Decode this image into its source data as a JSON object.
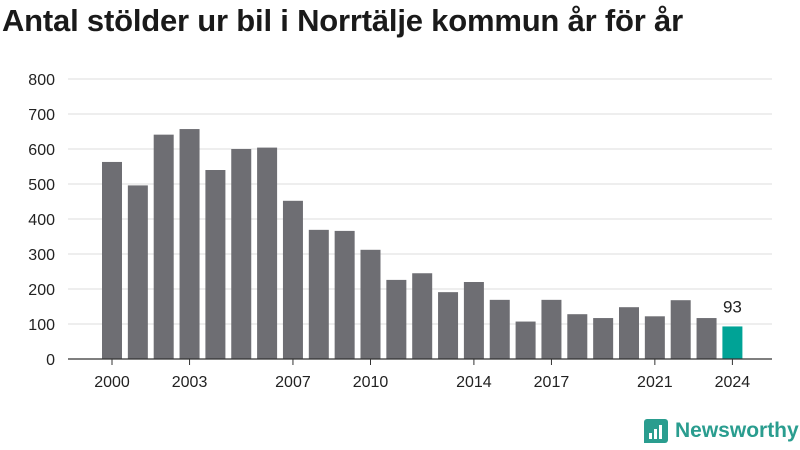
{
  "chart_data": {
    "type": "bar",
    "title": "Antal stölder ur bil i Norrtälje kommun år för år",
    "categories": [
      "2000",
      "2001",
      "2002",
      "2003",
      "2004",
      "2005",
      "2006",
      "2007",
      "2008",
      "2009",
      "2010",
      "2011",
      "2012",
      "2013",
      "2014",
      "2015",
      "2016",
      "2017",
      "2018",
      "2019",
      "2020",
      "2021",
      "2022",
      "2023",
      "2024"
    ],
    "values": [
      563,
      496,
      641,
      657,
      540,
      600,
      604,
      452,
      369,
      366,
      312,
      226,
      245,
      191,
      220,
      169,
      107,
      169,
      128,
      117,
      148,
      122,
      168,
      117,
      93
    ],
    "x_tick_labels": [
      "2000",
      "2003",
      "2007",
      "2010",
      "2014",
      "2017",
      "2021",
      "2024"
    ],
    "y_ticks": [
      0,
      100,
      200,
      300,
      400,
      500,
      600,
      700,
      800
    ],
    "ylim": [
      0,
      800
    ],
    "xlabel": "",
    "ylabel": "",
    "grid": true,
    "highlight": {
      "category": "2024",
      "label": "93"
    },
    "colors": {
      "bar": "#6e6e73",
      "highlight": "#00a396",
      "grid": "#dddddd",
      "axis": "#333333"
    }
  },
  "brand": {
    "name": "Newsworthy",
    "color": "#2a9d8f",
    "icon": "bar-chart-icon"
  }
}
